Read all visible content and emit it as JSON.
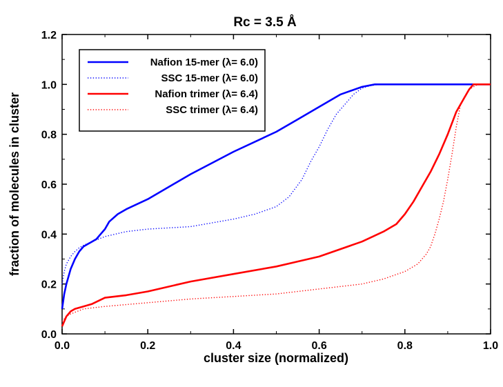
{
  "chart_data": {
    "type": "line",
    "title": "Rc = 3.5 Å",
    "xlabel": "cluster size (normalized)",
    "ylabel": "fraction of molecules in cluster",
    "xlim": [
      0,
      1.0
    ],
    "ylim": [
      0,
      1.2
    ],
    "x_ticks": [
      "0.0",
      "0.2",
      "0.4",
      "0.6",
      "0.8",
      "1.0"
    ],
    "y_ticks": [
      "0.0",
      "0.2",
      "0.4",
      "0.6",
      "0.8",
      "1.0",
      "1.2"
    ],
    "grid": false,
    "legend_position": "top-left",
    "series": [
      {
        "name": "Nafion 15-mer (λ= 6.0)",
        "color": "#0000ff",
        "style": "solid",
        "x": [
          0,
          0.005,
          0.01,
          0.02,
          0.03,
          0.04,
          0.05,
          0.06,
          0.07,
          0.08,
          0.09,
          0.1,
          0.11,
          0.13,
          0.15,
          0.2,
          0.3,
          0.4,
          0.5,
          0.55,
          0.6,
          0.65,
          0.7,
          0.73,
          0.75,
          0.8,
          0.9,
          1.0
        ],
        "y": [
          0.1,
          0.16,
          0.2,
          0.26,
          0.3,
          0.33,
          0.35,
          0.36,
          0.37,
          0.38,
          0.4,
          0.42,
          0.45,
          0.48,
          0.5,
          0.54,
          0.64,
          0.73,
          0.81,
          0.86,
          0.91,
          0.96,
          0.99,
          1.0,
          1.0,
          1.0,
          1.0,
          1.0
        ]
      },
      {
        "name": "SSC 15-mer (λ= 6.0)",
        "color": "#0000ff",
        "style": "dotted",
        "x": [
          0,
          0.005,
          0.01,
          0.02,
          0.03,
          0.04,
          0.05,
          0.07,
          0.1,
          0.15,
          0.2,
          0.3,
          0.4,
          0.45,
          0.5,
          0.53,
          0.56,
          0.58,
          0.6,
          0.62,
          0.64,
          0.66,
          0.68,
          0.7,
          0.72,
          0.74,
          0.76,
          0.8,
          0.9,
          1.0
        ],
        "y": [
          0.2,
          0.25,
          0.28,
          0.31,
          0.33,
          0.345,
          0.355,
          0.37,
          0.39,
          0.41,
          0.42,
          0.43,
          0.46,
          0.48,
          0.51,
          0.55,
          0.62,
          0.69,
          0.75,
          0.82,
          0.88,
          0.92,
          0.96,
          0.985,
          0.995,
          1.0,
          1.0,
          1.0,
          1.0,
          1.0
        ]
      },
      {
        "name": "Nafion trimer (λ= 6.4)",
        "color": "#ff0000",
        "style": "solid",
        "x": [
          0,
          0.005,
          0.01,
          0.02,
          0.03,
          0.05,
          0.07,
          0.1,
          0.15,
          0.2,
          0.3,
          0.4,
          0.5,
          0.6,
          0.7,
          0.75,
          0.78,
          0.8,
          0.82,
          0.84,
          0.86,
          0.88,
          0.9,
          0.92,
          0.94,
          0.95,
          0.96,
          1.0
        ],
        "y": [
          0.03,
          0.05,
          0.07,
          0.09,
          0.1,
          0.11,
          0.12,
          0.145,
          0.155,
          0.17,
          0.21,
          0.24,
          0.27,
          0.31,
          0.37,
          0.41,
          0.44,
          0.48,
          0.53,
          0.59,
          0.65,
          0.72,
          0.8,
          0.89,
          0.95,
          0.98,
          1.0,
          1.0
        ]
      },
      {
        "name": "SSC trimer (λ= 6.4)",
        "color": "#ff0000",
        "style": "dotted",
        "x": [
          0,
          0.01,
          0.02,
          0.05,
          0.1,
          0.2,
          0.3,
          0.4,
          0.5,
          0.6,
          0.7,
          0.75,
          0.8,
          0.83,
          0.85,
          0.86,
          0.87,
          0.88,
          0.89,
          0.9,
          0.91,
          0.92,
          0.93,
          0.95,
          0.97,
          1.0
        ],
        "y": [
          0.05,
          0.07,
          0.08,
          0.1,
          0.11,
          0.125,
          0.14,
          0.15,
          0.16,
          0.18,
          0.2,
          0.22,
          0.25,
          0.28,
          0.32,
          0.35,
          0.4,
          0.46,
          0.53,
          0.62,
          0.72,
          0.83,
          0.92,
          0.98,
          1.0,
          1.0
        ]
      }
    ]
  }
}
